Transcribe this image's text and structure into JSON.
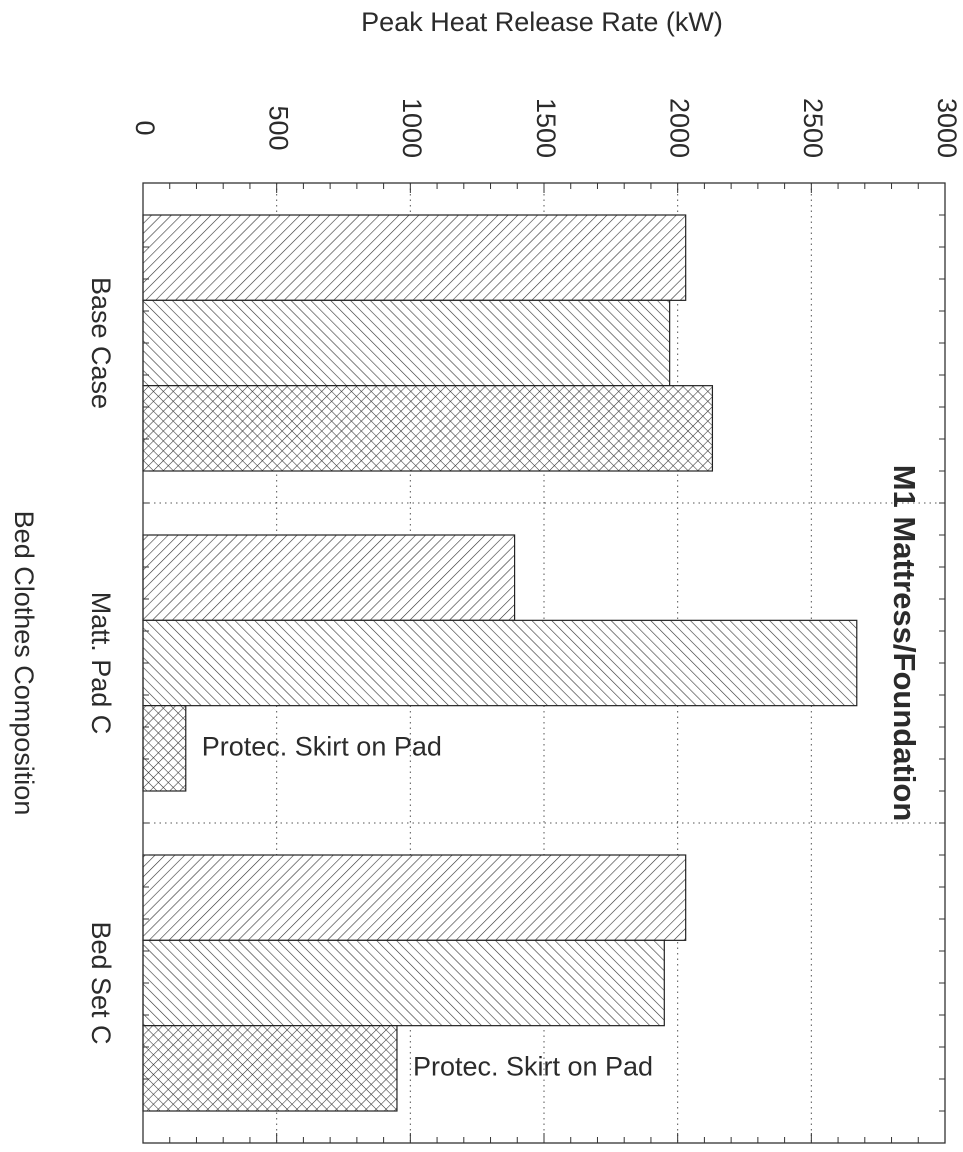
{
  "chart_data": {
    "type": "bar",
    "orientation": "rotated-90-clockwise",
    "title": "M1 Mattress/Foundation",
    "xlabel": "Bed Clothes Composition",
    "ylabel": "Peak Heat Release Rate (kW)",
    "ylim": [
      0,
      3000
    ],
    "y_ticks": [
      0,
      500,
      1000,
      1500,
      2000,
      2500,
      3000
    ],
    "grid": true,
    "categories": [
      "Base Case",
      "Matt. Pad C",
      "Bed Set C"
    ],
    "series": [
      {
        "values": [
          2030,
          1390,
          2030
        ],
        "pattern": "diagonal-right"
      },
      {
        "values": [
          1970,
          2670,
          1950
        ],
        "pattern": "diagonal-left"
      },
      {
        "values": [
          2130,
          160,
          950
        ],
        "pattern": "crosshatch"
      }
    ],
    "annotations": [
      {
        "text": "Protec. Skirt on Pad",
        "category": "Matt. Pad C",
        "series": 2
      },
      {
        "text": "Protec. Skirt on Pad",
        "category": "Bed Set C",
        "series": 2
      }
    ]
  }
}
